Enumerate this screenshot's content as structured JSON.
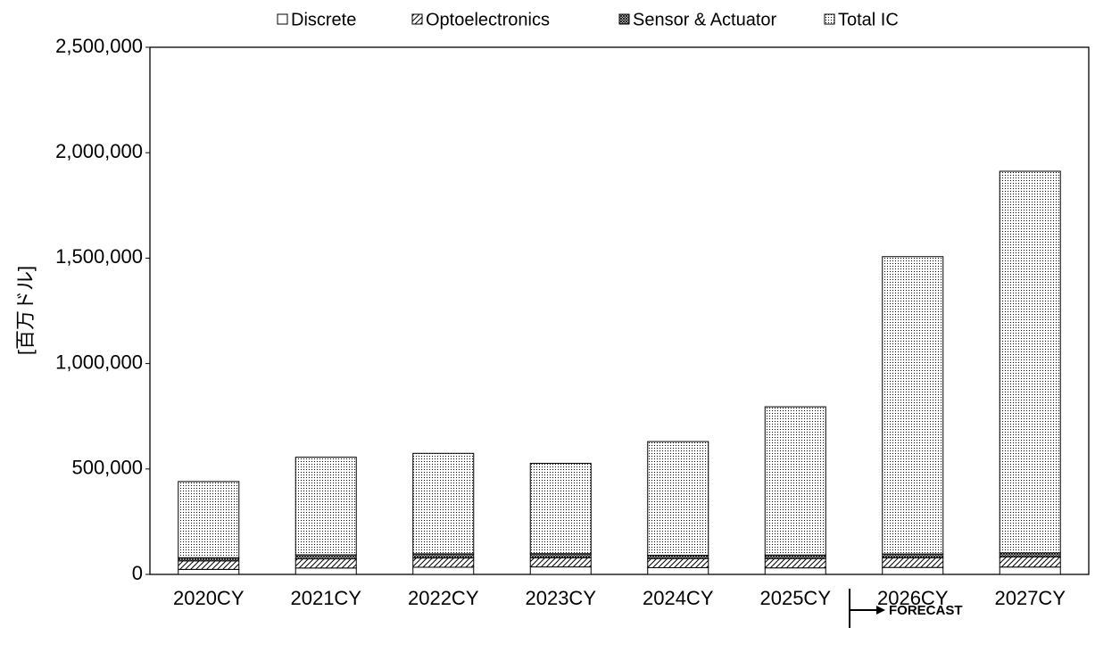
{
  "chart_data": {
    "type": "stacked_bar",
    "y_label": "[百万ドル]",
    "categories": [
      "2020CY",
      "2021CY",
      "2022CY",
      "2023CY",
      "2024CY",
      "2025CY",
      "2026CY",
      "2027CY"
    ],
    "series": [
      {
        "name": "Discrete",
        "color": "#000000",
        "values": [
          23804,
          30337,
          33993,
          35530,
          32000,
          31000,
          33000,
          35000
        ]
      },
      {
        "name": "Optoelectronics",
        "color": "#000000",
        "values": [
          40397,
          43404,
          43908,
          43184,
          43000,
          44000,
          46000,
          48000
        ]
      },
      {
        "name": "Sensor & Actuator",
        "color": "#000000",
        "values": [
          14962,
          19149,
          19772,
          19730,
          16000,
          17000,
          18000,
          19000
        ]
      },
      {
        "name": "Total IC",
        "color": "#000000",
        "values": [
          361226,
          463002,
          476451,
          428441,
          539000,
          703000,
          1410000,
          1810000
        ]
      }
    ],
    "ylim": [
      0,
      2500000
    ],
    "yticks": [
      0,
      {
        "value": 500000,
        "label": "500,000"
      },
      {
        "value": 1000000,
        "label": "1,000,000"
      },
      {
        "value": 1500000,
        "label": "1,500,000"
      },
      {
        "value": 2000000,
        "label": "2,000,000"
      },
      {
        "value": 2500000,
        "label": "2,500,000"
      }
    ],
    "annotation": "FORECAST",
    "legend": "top"
  }
}
